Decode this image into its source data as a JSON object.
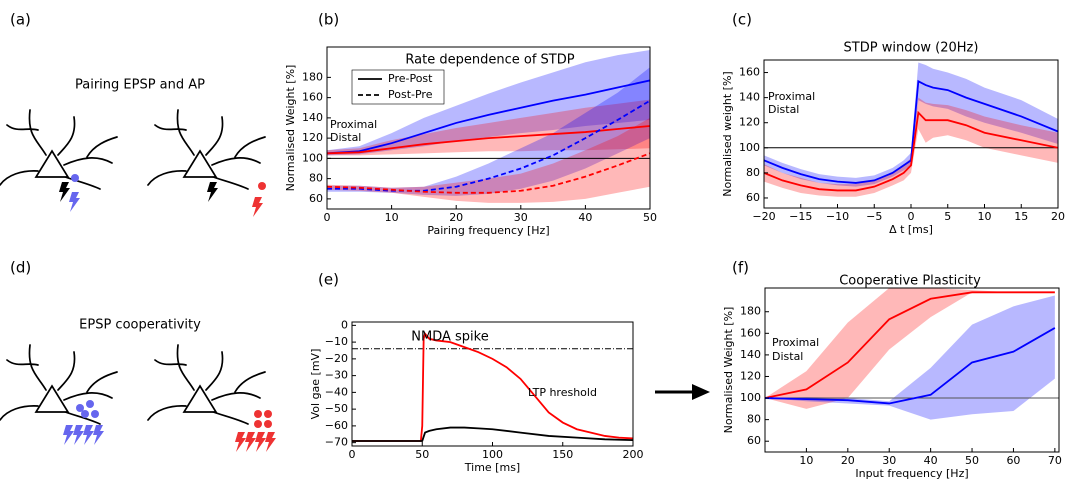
{
  "figure": {
    "panel_labels": [
      "(a)",
      "(b)",
      "(c)",
      "(d)",
      "(e)",
      "(f)"
    ],
    "diagram_titles": [
      "Pairing EPSP and AP",
      "EPSP cooperativity"
    ]
  },
  "chart_data": [
    {
      "type": "line",
      "title": "Rate dependence of STDP",
      "xlabel": "Pairing frequency [Hz]",
      "ylabel": "Normalised Weight [%]",
      "x": [
        0,
        5,
        10,
        15,
        20,
        25,
        30,
        35,
        40,
        45,
        50
      ],
      "xlim": [
        0,
        50
      ],
      "ylim": [
        50,
        210
      ],
      "xticks": [
        0,
        10,
        20,
        30,
        40,
        50
      ],
      "yticks": [
        60,
        80,
        100,
        120,
        140,
        160,
        180
      ],
      "hline": {
        "value": 100,
        "color": "#000000",
        "dash": "solid"
      },
      "legend": [
        {
          "label": "Pre-Post",
          "dash": "solid"
        },
        {
          "label": "Post-Pre",
          "dash": "dashed"
        }
      ],
      "annotations": [
        {
          "text": "Proximal",
          "color": "#0000ff"
        },
        {
          "text": "Distal",
          "color": "#ff0000"
        }
      ],
      "series": [
        {
          "color": "#0000ff",
          "dash": "solid",
          "values": [
            105,
            107,
            115,
            125,
            135,
            143,
            150,
            157,
            163,
            170,
            177
          ],
          "lower": [
            103,
            104,
            108,
            112,
            117,
            121,
            125,
            128,
            132,
            135,
            138
          ],
          "upper": [
            108,
            112,
            125,
            140,
            152,
            164,
            175,
            185,
            195,
            202,
            207
          ]
        },
        {
          "color": "#ff0000",
          "dash": "solid",
          "values": [
            105,
            106,
            110,
            114,
            117,
            120,
            122,
            124,
            126,
            129,
            132
          ],
          "lower": [
            103,
            103,
            104,
            105,
            106,
            107,
            107,
            108,
            108,
            109,
            110
          ],
          "upper": [
            108,
            110,
            118,
            124,
            130,
            135,
            140,
            145,
            150,
            154,
            158
          ]
        },
        {
          "color": "#0000ff",
          "dash": "dashed",
          "values": [
            70,
            70,
            68,
            68,
            72,
            80,
            90,
            103,
            120,
            138,
            157
          ],
          "lower": [
            67,
            67,
            66,
            64,
            63,
            65,
            70,
            78,
            90,
            105,
            120
          ],
          "upper": [
            73,
            73,
            71,
            72,
            82,
            95,
            110,
            125,
            145,
            165,
            190
          ]
        },
        {
          "color": "#ff0000",
          "dash": "dashed",
          "values": [
            72,
            71,
            69,
            67,
            66,
            66,
            68,
            73,
            82,
            93,
            105
          ],
          "lower": [
            69,
            68,
            66,
            62,
            58,
            56,
            56,
            57,
            60,
            66,
            72
          ],
          "upper": [
            74,
            73,
            71,
            72,
            76,
            80,
            85,
            95,
            108,
            122,
            140
          ]
        }
      ]
    },
    {
      "type": "line",
      "title": "STDP window (20Hz)",
      "xlabel": "Δ t [ms]",
      "ylabel": "Normalised weight [%]",
      "x": [
        -20,
        -17.5,
        -15,
        -12.5,
        -10,
        -7.5,
        -5,
        -2.5,
        -1,
        0,
        1,
        2,
        3,
        5,
        7.5,
        10,
        15,
        20
      ],
      "xlim": [
        -20,
        20
      ],
      "ylim": [
        52,
        170
      ],
      "xticks": [
        {
          "value": -20,
          "label": "−20"
        },
        {
          "value": -15,
          "label": "−15"
        },
        {
          "value": -10,
          "label": "−10"
        },
        {
          "value": -5,
          "label": "−5"
        },
        0,
        5,
        10,
        15,
        20
      ],
      "yticks": [
        60,
        80,
        100,
        120,
        140,
        160
      ],
      "hline": {
        "value": 100,
        "color": "#000000",
        "dash": "solid"
      },
      "annotations": [
        {
          "text": "Proximal",
          "color": "#0000ff"
        },
        {
          "text": "Distal",
          "color": "#ff0000"
        }
      ],
      "series": [
        {
          "color": "#0000ff",
          "dash": "solid",
          "values": [
            90,
            84,
            79,
            75,
            73,
            72,
            74,
            80,
            86,
            90,
            153,
            150,
            148,
            146,
            140,
            135,
            125,
            113
          ],
          "lower": [
            86,
            80,
            75,
            72,
            70,
            69,
            71,
            77,
            82,
            86,
            138,
            135,
            133,
            131,
            125,
            120,
            112,
            103
          ],
          "upper": [
            94,
            88,
            83,
            79,
            77,
            76,
            78,
            84,
            90,
            96,
            168,
            166,
            163,
            160,
            155,
            148,
            138,
            123
          ]
        },
        {
          "color": "#ff0000",
          "dash": "solid",
          "values": [
            80,
            74,
            70,
            67,
            66,
            66,
            69,
            75,
            80,
            86,
            128,
            122,
            122,
            122,
            118,
            112,
            106,
            100
          ],
          "lower": [
            73,
            68,
            64,
            62,
            61,
            61,
            64,
            70,
            74,
            80,
            115,
            104,
            108,
            110,
            106,
            100,
            94,
            88
          ],
          "upper": [
            87,
            80,
            76,
            72,
            71,
            71,
            74,
            80,
            86,
            92,
            140,
            136,
            135,
            134,
            130,
            125,
            118,
            112
          ]
        }
      ]
    },
    {
      "type": "line",
      "title": "NMDA spike",
      "xlabel": "Time [ms]",
      "ylabel": "Vol gae [mV]",
      "xlim": [
        0,
        200
      ],
      "ylim": [
        -72,
        2
      ],
      "xticks": [
        0,
        50,
        100,
        150,
        200
      ],
      "yticks": [
        0,
        {
          "value": -10,
          "label": "−10"
        },
        {
          "value": -20,
          "label": "−20"
        },
        {
          "value": -30,
          "label": "−30"
        },
        {
          "value": -40,
          "label": "−40"
        },
        {
          "value": -50,
          "label": "−50"
        },
        {
          "value": -60,
          "label": "−60"
        },
        {
          "value": -70,
          "label": "−70"
        }
      ],
      "hline": {
        "value": -14,
        "color": "#000000",
        "dash": "dashdot"
      },
      "annotations": [
        {
          "text": "LTP hreshold",
          "color": "#000000"
        }
      ],
      "series": [
        {
          "color": "#ff0000",
          "dash": "solid",
          "x": [
            0,
            49,
            50,
            51,
            52,
            55,
            60,
            70,
            80,
            90,
            100,
            110,
            120,
            130,
            140,
            150,
            160,
            170,
            180,
            190,
            200
          ],
          "values": [
            -69,
            -69,
            -60,
            -8,
            -5,
            -8,
            -9,
            -10,
            -13,
            -16,
            -20,
            -25,
            -32,
            -42,
            -52,
            -58,
            -62,
            -64,
            -66,
            -67,
            -67.5
          ]
        },
        {
          "color": "#000000",
          "dash": "solid",
          "x": [
            0,
            49,
            50,
            52,
            55,
            60,
            70,
            80,
            90,
            100,
            120,
            140,
            160,
            180,
            200
          ],
          "values": [
            -69,
            -69,
            -69,
            -64,
            -63,
            -62,
            -61,
            -61,
            -61.5,
            -62,
            -64,
            -66,
            -67,
            -68,
            -68.5
          ]
        }
      ]
    },
    {
      "type": "line",
      "title": "Cooperative Plasticity",
      "xlabel": "Input frequency [Hz]",
      "ylabel": "Normalised Weight [%]",
      "x": [
        0,
        10,
        20,
        30,
        40,
        50,
        60,
        70
      ],
      "xlim": [
        0,
        71
      ],
      "ylim": [
        50,
        202
      ],
      "xticks": [
        10,
        20,
        30,
        40,
        50,
        60,
        70
      ],
      "yticks": [
        60,
        80,
        100,
        120,
        140,
        160,
        180
      ],
      "hline": {
        "value": 100,
        "color": "#555555",
        "dash": "solid"
      },
      "annotations": [
        {
          "text": "Proximal",
          "color": "#0000ff"
        },
        {
          "text": "Distal",
          "color": "#ff0000"
        }
      ],
      "series": [
        {
          "color": "#ff0000",
          "dash": "solid",
          "values": [
            100,
            108,
            133,
            173,
            192,
            198,
            198,
            198
          ],
          "lower": [
            100,
            90,
            100,
            145,
            175,
            198,
            198,
            198
          ],
          "upper": [
            100,
            125,
            170,
            202,
            202,
            200,
            198,
            198
          ]
        },
        {
          "color": "#0000ff",
          "dash": "solid",
          "values": [
            100,
            99,
            98,
            95,
            103,
            133,
            143,
            165
          ],
          "lower": [
            100,
            97,
            95,
            93,
            80,
            85,
            88,
            118
          ],
          "upper": [
            100,
            101,
            100,
            97,
            128,
            168,
            185,
            195
          ]
        }
      ]
    }
  ]
}
